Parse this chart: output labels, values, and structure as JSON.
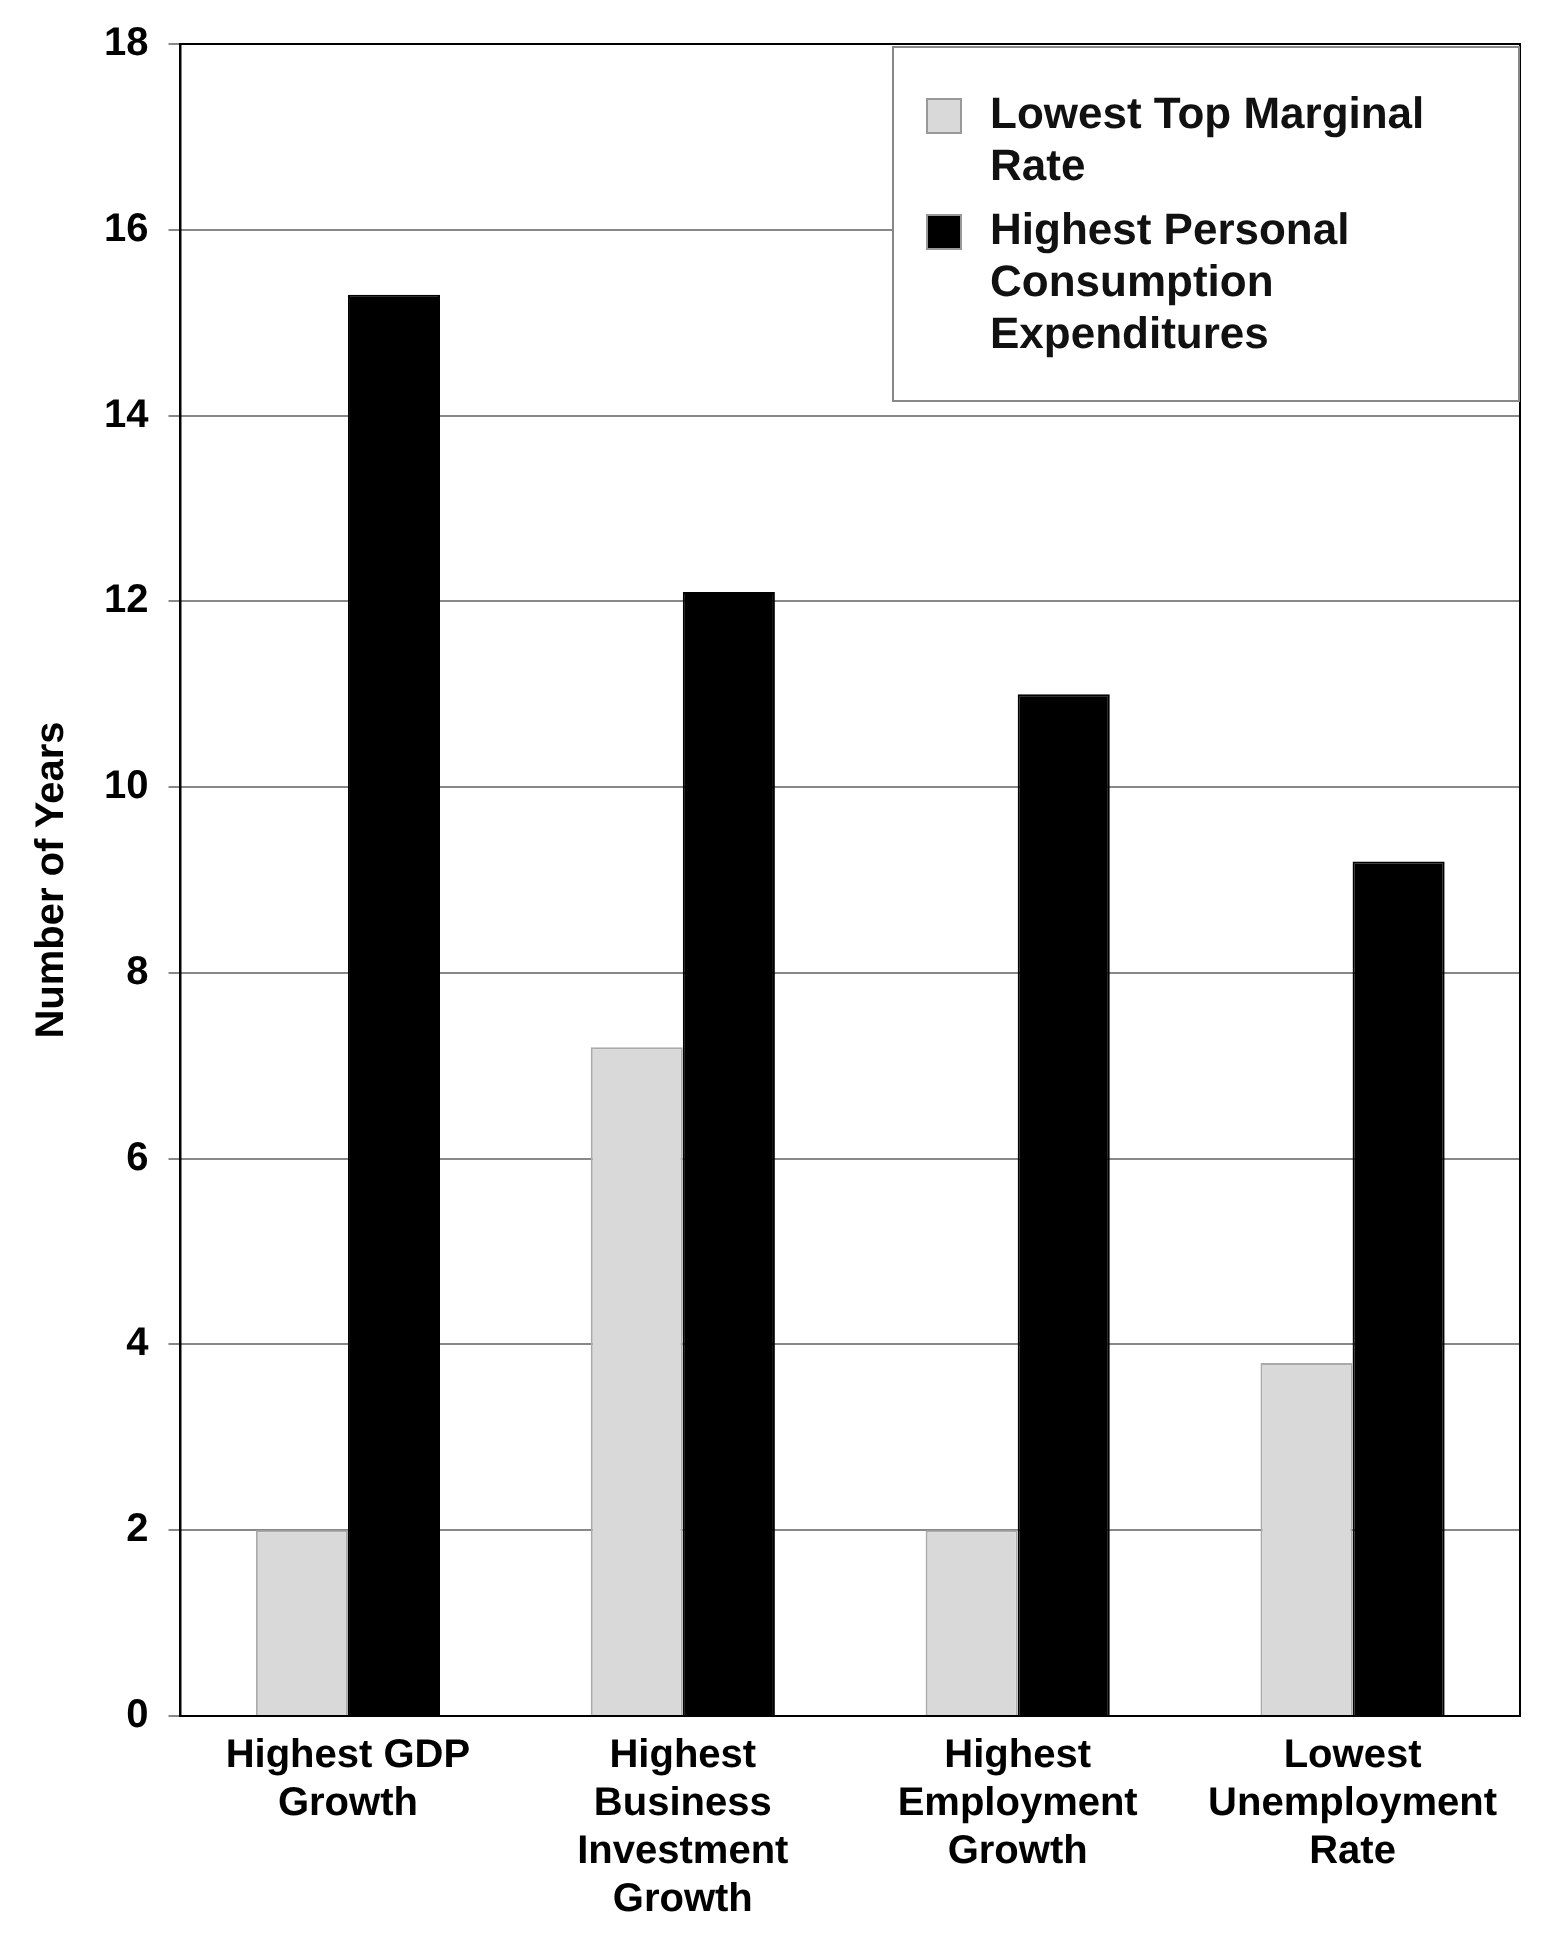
{
  "chart_data": {
    "type": "bar",
    "ylabel": "Number of Years",
    "categories": [
      "Highest GDP Growth",
      "Highest Business Investment Growth",
      "Highest Employment Growth",
      "Lowest Unemployment Rate"
    ],
    "series": [
      {
        "name": "Lowest Top Marginal Rate",
        "color": "#d9d9d9",
        "values": [
          2,
          7.2,
          2,
          3.8
        ]
      },
      {
        "name": "Highest Personal Consumption Expenditures",
        "color": "#000000",
        "values": [
          15.3,
          12.1,
          11,
          9.2
        ]
      }
    ],
    "ylim": [
      0,
      18
    ],
    "yticks": [
      0,
      2,
      4,
      6,
      8,
      10,
      12,
      14,
      16,
      18
    ],
    "grid": "y",
    "legend": "top right"
  }
}
